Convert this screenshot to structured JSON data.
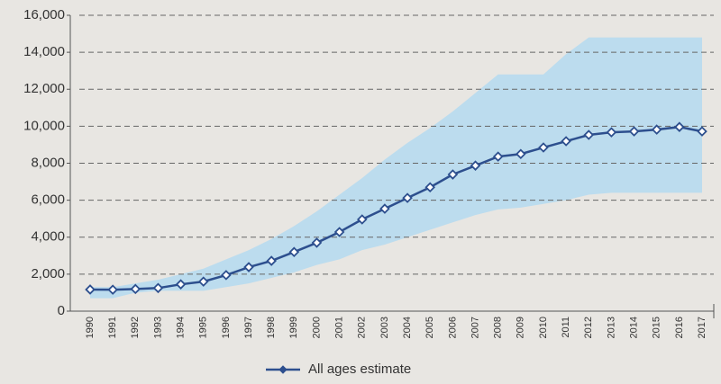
{
  "chart_data": {
    "type": "line",
    "categories": [
      "1990",
      "1991",
      "1992",
      "1993",
      "1994",
      "1995",
      "1996",
      "1997",
      "1998",
      "1999",
      "2000",
      "2001",
      "2002",
      "2003",
      "2004",
      "2005",
      "2006",
      "2007",
      "2008",
      "2009",
      "2010",
      "2011",
      "2012",
      "2013",
      "2014",
      "2015",
      "2016",
      "2017"
    ],
    "series": [
      {
        "name": "All ages estimate",
        "color": "#2d4f8e",
        "values": [
          1170,
          1160,
          1200,
          1250,
          1450,
          1600,
          1950,
          2380,
          2720,
          3200,
          3700,
          4280,
          4960,
          5540,
          6120,
          6700,
          7390,
          7870,
          8360,
          8500,
          8850,
          9190,
          9530,
          9670,
          9720,
          9820,
          9960,
          9720
        ]
      }
    ],
    "band": {
      "color": "#bcdcee",
      "upper": [
        1300,
        1300,
        1500,
        1700,
        2000,
        2300,
        2800,
        3300,
        3900,
        4600,
        5400,
        6300,
        7200,
        8200,
        9100,
        9900,
        10800,
        11800,
        12800,
        12800,
        12800,
        13900,
        14800,
        14800,
        14800,
        14800,
        14800,
        14800
      ],
      "lower": [
        700,
        700,
        1000,
        1100,
        1100,
        1100,
        1300,
        1500,
        1800,
        2100,
        2500,
        2800,
        3300,
        3600,
        4000,
        4400,
        4800,
        5200,
        5500,
        5600,
        5800,
        6000,
        6300,
        6400,
        6400,
        6400,
        6400,
        6400
      ]
    },
    "ylim": [
      0,
      16000
    ],
    "yticks": [
      0,
      {
        "value": 2000,
        "label": "2,000"
      },
      {
        "value": 4000,
        "label": "4,000"
      },
      {
        "value": 6000,
        "label": "6,000"
      },
      {
        "value": 8000,
        "label": "8,000"
      },
      {
        "value": 10000,
        "label": "10,000"
      },
      {
        "value": 12000,
        "label": "12,000"
      },
      {
        "value": 14000,
        "label": "14,000"
      },
      {
        "value": 16000,
        "label": "16,000"
      }
    ],
    "grid": true
  }
}
